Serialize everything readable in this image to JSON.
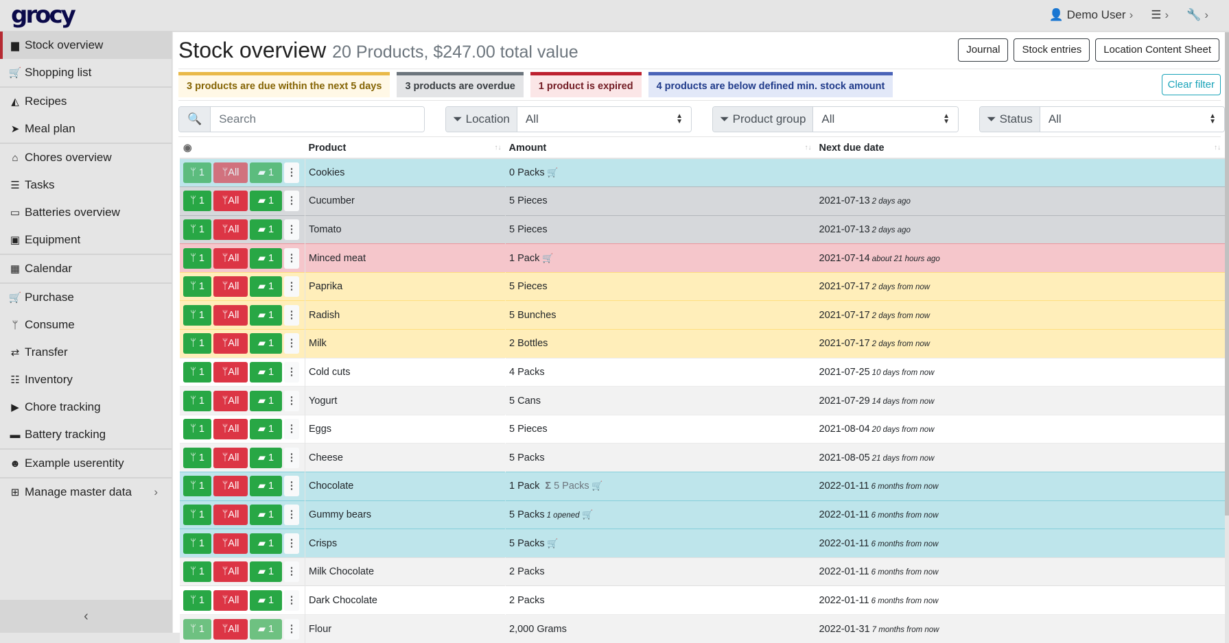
{
  "app": {
    "logo": "grocy",
    "user": "Demo User"
  },
  "sidebar": {
    "items": [
      {
        "label": "Stock overview",
        "icon": "box-icon",
        "glyph": "▆",
        "active": true,
        "sep": false
      },
      {
        "label": "Shopping list",
        "icon": "cart-icon",
        "glyph": "🛒",
        "sep": true
      },
      {
        "label": "Recipes",
        "icon": "pizza-icon",
        "glyph": "◭",
        "sep": false
      },
      {
        "label": "Meal plan",
        "icon": "paper-plane-icon",
        "glyph": "➤",
        "sep": true
      },
      {
        "label": "Chores overview",
        "icon": "home-icon",
        "glyph": "⌂",
        "sep": false
      },
      {
        "label": "Tasks",
        "icon": "tasks-icon",
        "glyph": "☰",
        "sep": false
      },
      {
        "label": "Batteries overview",
        "icon": "battery-icon",
        "glyph": "▭",
        "sep": false
      },
      {
        "label": "Equipment",
        "icon": "toolbox-icon",
        "glyph": "▣",
        "sep": true
      },
      {
        "label": "Calendar",
        "icon": "calendar-icon",
        "glyph": "▦",
        "sep": true
      },
      {
        "label": "Purchase",
        "icon": "cart-plus-icon",
        "glyph": "🛒",
        "sep": false
      },
      {
        "label": "Consume",
        "icon": "utensils-icon",
        "glyph": "ᛘ",
        "sep": false
      },
      {
        "label": "Transfer",
        "icon": "exchange-icon",
        "glyph": "⇄",
        "sep": false
      },
      {
        "label": "Inventory",
        "icon": "list-icon",
        "glyph": "☷",
        "sep": false
      },
      {
        "label": "Chore tracking",
        "icon": "play-icon",
        "glyph": "▶",
        "sep": false
      },
      {
        "label": "Battery tracking",
        "icon": "car-battery-icon",
        "glyph": "▬",
        "sep": true
      },
      {
        "label": "Example userentity",
        "icon": "smile-icon",
        "glyph": "☻",
        "sep": true
      },
      {
        "label": "Manage master data",
        "icon": "table-icon",
        "glyph": "⊞",
        "sep": false,
        "arrow": true
      }
    ]
  },
  "header": {
    "title": "Stock overview",
    "subtitle": "20 Products, $247.00 total value",
    "buttons": [
      "Journal",
      "Stock entries",
      "Location Content Sheet"
    ]
  },
  "alerts": [
    {
      "text": "3 products are due within the next 5 days",
      "bg": "#fff8e6",
      "border": "#e9b949",
      "color": "#856404"
    },
    {
      "text": "3 products are overdue",
      "bg": "#e3e4e6",
      "border": "#6c757d",
      "color": "#383d41"
    },
    {
      "text": "1 product is expired",
      "bg": "#fbe6e7",
      "border": "#bd2130",
      "color": "#721c24"
    },
    {
      "text": "4 products are below defined min. stock amount",
      "bg": "#e2e8f8",
      "border": "#4a63b8",
      "color": "#1f3a8a"
    }
  ],
  "clear_filter": "Clear filter",
  "filters": {
    "search_placeholder": "Search",
    "location_label": "Location",
    "location_value": "All",
    "group_label": "Product group",
    "group_value": "All",
    "status_label": "Status",
    "status_value": "All"
  },
  "table": {
    "headers": [
      "Product",
      "Amount",
      "Next due date"
    ],
    "button_labels": {
      "consume_one": "1",
      "consume_all": "All",
      "open_one": "1"
    },
    "rows": [
      {
        "product": "Cookies",
        "amount": "0 Packs",
        "cart": true,
        "date": "",
        "rel": "",
        "status": "info",
        "faded": true
      },
      {
        "product": "Cucumber",
        "amount": "5 Pieces",
        "date": "2021-07-13",
        "rel": "2 days ago",
        "status": "sec"
      },
      {
        "product": "Tomato",
        "amount": "5 Pieces",
        "date": "2021-07-13",
        "rel": "2 days ago",
        "status": "sec"
      },
      {
        "product": "Minced meat",
        "amount": "1 Pack",
        "cart": true,
        "date": "2021-07-14",
        "rel": "about 21 hours ago",
        "status": "dan"
      },
      {
        "product": "Paprika",
        "amount": "5 Pieces",
        "date": "2021-07-17",
        "rel": "2 days from now",
        "status": "warn"
      },
      {
        "product": "Radish",
        "amount": "5 Bunches",
        "date": "2021-07-17",
        "rel": "2 days from now",
        "status": "warn"
      },
      {
        "product": "Milk",
        "amount": "2 Bottles",
        "date": "2021-07-17",
        "rel": "2 days from now",
        "status": "warn"
      },
      {
        "product": "Cold cuts",
        "amount": "4 Packs",
        "date": "2021-07-25",
        "rel": "10 days from now",
        "status": "even"
      },
      {
        "product": "Yogurt",
        "amount": "5 Cans",
        "date": "2021-07-29",
        "rel": "14 days from now",
        "status": "odd"
      },
      {
        "product": "Eggs",
        "amount": "5 Pieces",
        "date": "2021-08-04",
        "rel": "20 days from now",
        "status": "even"
      },
      {
        "product": "Cheese",
        "amount": "5 Packs",
        "date": "2021-08-05",
        "rel": "21 days from now",
        "status": "odd"
      },
      {
        "product": "Chocolate",
        "amount": "1 Pack",
        "sum": "5 Packs",
        "cart": true,
        "date": "2022-01-11",
        "rel": "6 months from now",
        "status": "info"
      },
      {
        "product": "Gummy bears",
        "amount": "5 Packs",
        "opened": "1 opened",
        "cart": true,
        "date": "2022-01-11",
        "rel": "6 months from now",
        "status": "info"
      },
      {
        "product": "Crisps",
        "amount": "5 Packs",
        "cart": true,
        "date": "2022-01-11",
        "rel": "6 months from now",
        "status": "info"
      },
      {
        "product": "Milk Chocolate",
        "amount": "2 Packs",
        "date": "2022-01-11",
        "rel": "6 months from now",
        "status": "odd"
      },
      {
        "product": "Dark Chocolate",
        "amount": "2 Packs",
        "date": "2022-01-11",
        "rel": "6 months from now",
        "status": "even"
      },
      {
        "product": "Flour",
        "amount": "2,000 Grams",
        "date": "2022-01-31",
        "rel": "7 months from now",
        "status": "odd",
        "faded": true
      }
    ]
  }
}
